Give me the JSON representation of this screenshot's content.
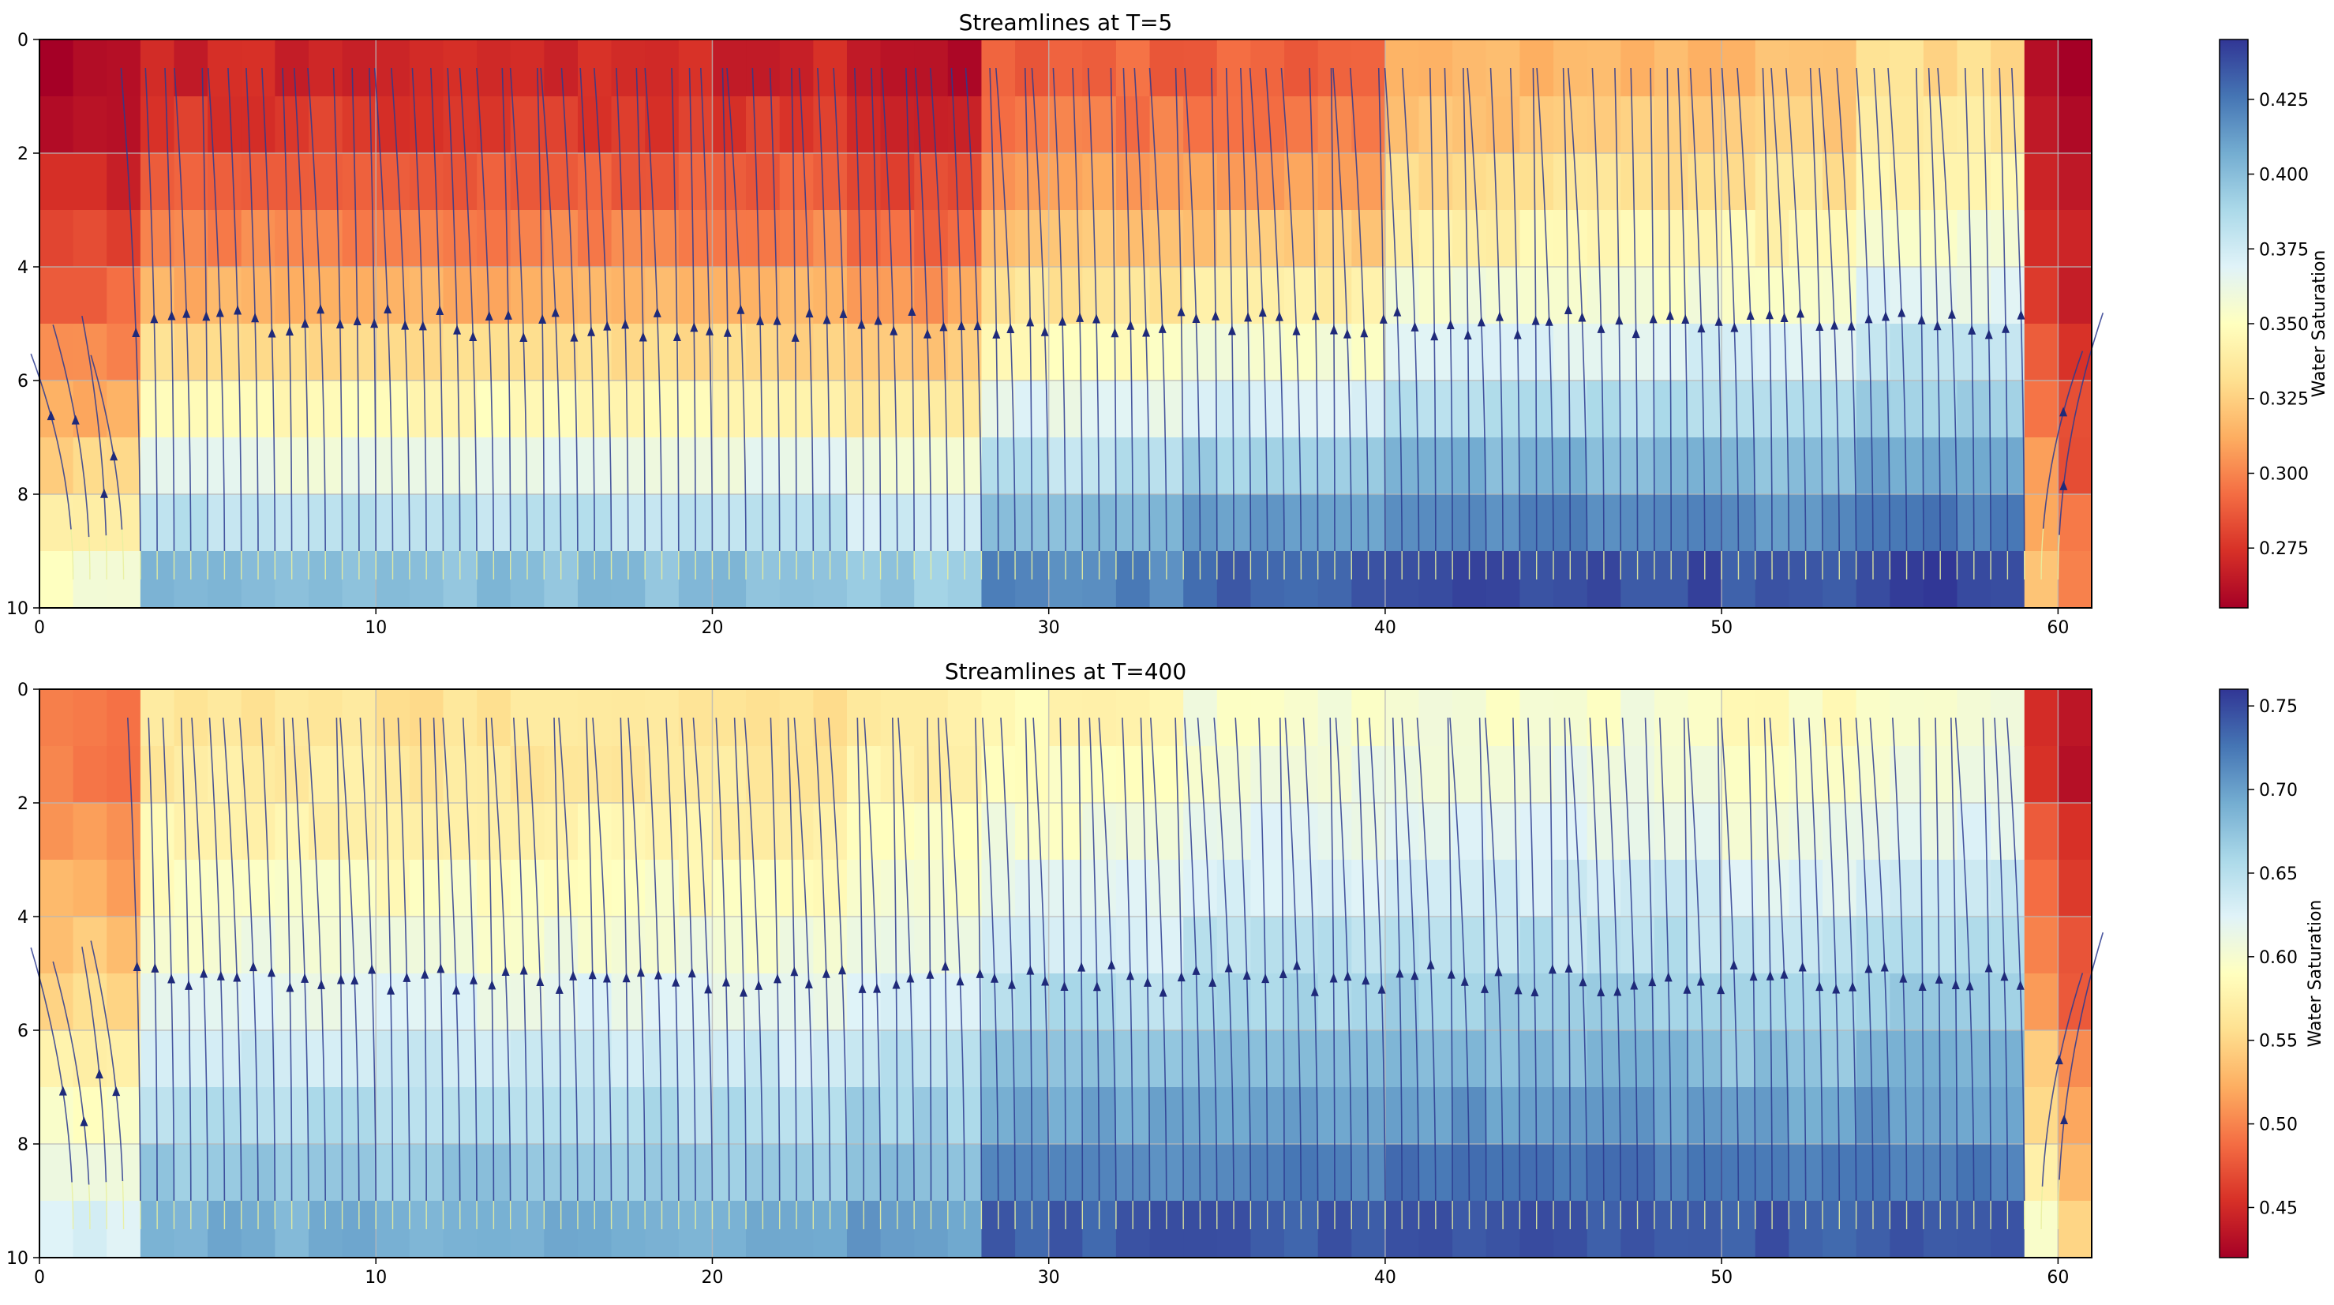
{
  "chart_data": [
    {
      "type": "heatmap",
      "title": "Streamlines at  T=5",
      "xlim": [
        0,
        61
      ],
      "ylim": [
        10,
        0
      ],
      "x_ticks": [
        0,
        10,
        20,
        30,
        40,
        50,
        60
      ],
      "y_ticks": [
        0,
        2,
        4,
        6,
        8,
        10
      ],
      "grid": true,
      "colorbar": {
        "label": "Water Saturation",
        "min": 0.255,
        "max": 0.445,
        "ticks": [
          "0.275",
          "0.300",
          "0.325",
          "0.350",
          "0.375",
          "0.400",
          "0.425"
        ],
        "colormap": "RdYlBu"
      },
      "region_x_edges": [
        0,
        3,
        24,
        28,
        34,
        40,
        50,
        54,
        59,
        60,
        61
      ],
      "region_top_values": [
        0.258,
        0.27,
        0.262,
        0.29,
        0.29,
        0.315,
        0.318,
        0.33,
        0.262,
        0.256
      ],
      "region_bottom_values": [
        0.355,
        0.4,
        0.395,
        0.42,
        0.432,
        0.438,
        0.432,
        0.44,
        0.32,
        0.3
      ],
      "streamlines": "vertical (flow toward top), one per ~0.5 units of x",
      "arrow_depth_typical": 5.0
    },
    {
      "type": "heatmap",
      "title": "Streamlines at  T=400",
      "xlim": [
        0,
        61
      ],
      "ylim": [
        10,
        0
      ],
      "x_ticks": [
        0,
        10,
        20,
        30,
        40,
        50,
        60
      ],
      "y_ticks": [
        0,
        2,
        4,
        6,
        8,
        10
      ],
      "grid": true,
      "colorbar": {
        "label": "Water Saturation",
        "min": 0.42,
        "max": 0.76,
        "ticks": [
          "0.45",
          "0.50",
          "0.55",
          "0.60",
          "0.65",
          "0.70",
          "0.75"
        ],
        "colormap": "RdYlBu"
      },
      "region_x_edges": [
        0,
        3,
        24,
        28,
        34,
        40,
        50,
        54,
        59,
        60,
        61
      ],
      "region_top_values": [
        0.49,
        0.56,
        0.57,
        0.58,
        0.6,
        0.6,
        0.59,
        0.6,
        0.45,
        0.43
      ],
      "region_bottom_values": [
        0.63,
        0.69,
        0.7,
        0.74,
        0.74,
        0.745,
        0.74,
        0.745,
        0.6,
        0.55
      ],
      "streamlines": "vertical (flow toward top), one per ~0.5 units of x",
      "arrow_depth_typical": 5.1
    }
  ]
}
